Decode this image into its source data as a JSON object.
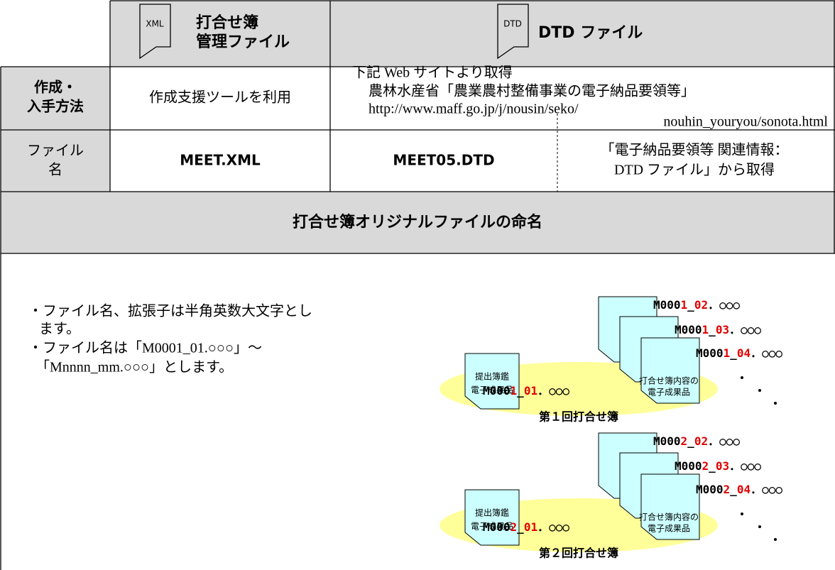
{
  "header": {
    "xml_icon": "XML",
    "xml_title_lines": [
      "打合せ簿",
      "管理ファイル"
    ],
    "dtd_icon": "DTD",
    "dtd_title": "DTD ファイル"
  },
  "method": {
    "label_lines": [
      "作成・",
      "入手方法"
    ],
    "xml": "作成支援ツールを利用",
    "dtd_lines": [
      "下記 Web サイトより取得",
      "農林水産省「農業農村整備事業の電子納品要領等」",
      "http://www.maff.go.jp/j/nousin/seko/",
      "nouhin_youryou/sonota.html"
    ]
  },
  "filename": {
    "label_lines": [
      "ファイル",
      "名"
    ],
    "xml": "MEET.XML",
    "dtd": "MEET05.DTD",
    "dtd_note_lines": [
      "「電子納品要領等 関連情報：",
      "DTD ファイル」から取得"
    ]
  },
  "naming": {
    "title": "打合せ簿オリジナルファイルの命名",
    "bullet_lines": [
      "・ファイル名、拡張子は半角英数大文字とし",
      "ます。",
      "・ファイル名は「M0001_01.○○○」～",
      "「Mnnnn_mm.○○○」とします。"
    ]
  },
  "groups": [
    {
      "cover_doc": [
        "提出簿鑑",
        "電子成果品"
      ],
      "content_doc": [
        "打合せ簿内容の",
        "電子成果品"
      ],
      "files": [
        [
          "M000",
          "1",
          "_",
          "01",
          "．○○○"
        ],
        [
          "M000",
          "1",
          "_",
          "02",
          "．○○○"
        ],
        [
          "M000",
          "1",
          "_",
          "03",
          "．○○○"
        ],
        [
          "M000",
          "1",
          "_",
          "04",
          "．○○○"
        ]
      ],
      "caption": "第１回打合せ簿"
    },
    {
      "cover_doc": [
        "提出簿鑑",
        "電子成果品"
      ],
      "content_doc": [
        "打合せ簿内容の",
        "電子成果品"
      ],
      "files": [
        [
          "M000",
          "2",
          "_",
          "01",
          "．○○○"
        ],
        [
          "M000",
          "2",
          "_",
          "02",
          "．○○○"
        ],
        [
          "M000",
          "2",
          "_",
          "03",
          "．○○○"
        ],
        [
          "M000",
          "2",
          "_",
          "04",
          "．○○○"
        ]
      ],
      "caption": "第２回打合せ簿"
    }
  ]
}
